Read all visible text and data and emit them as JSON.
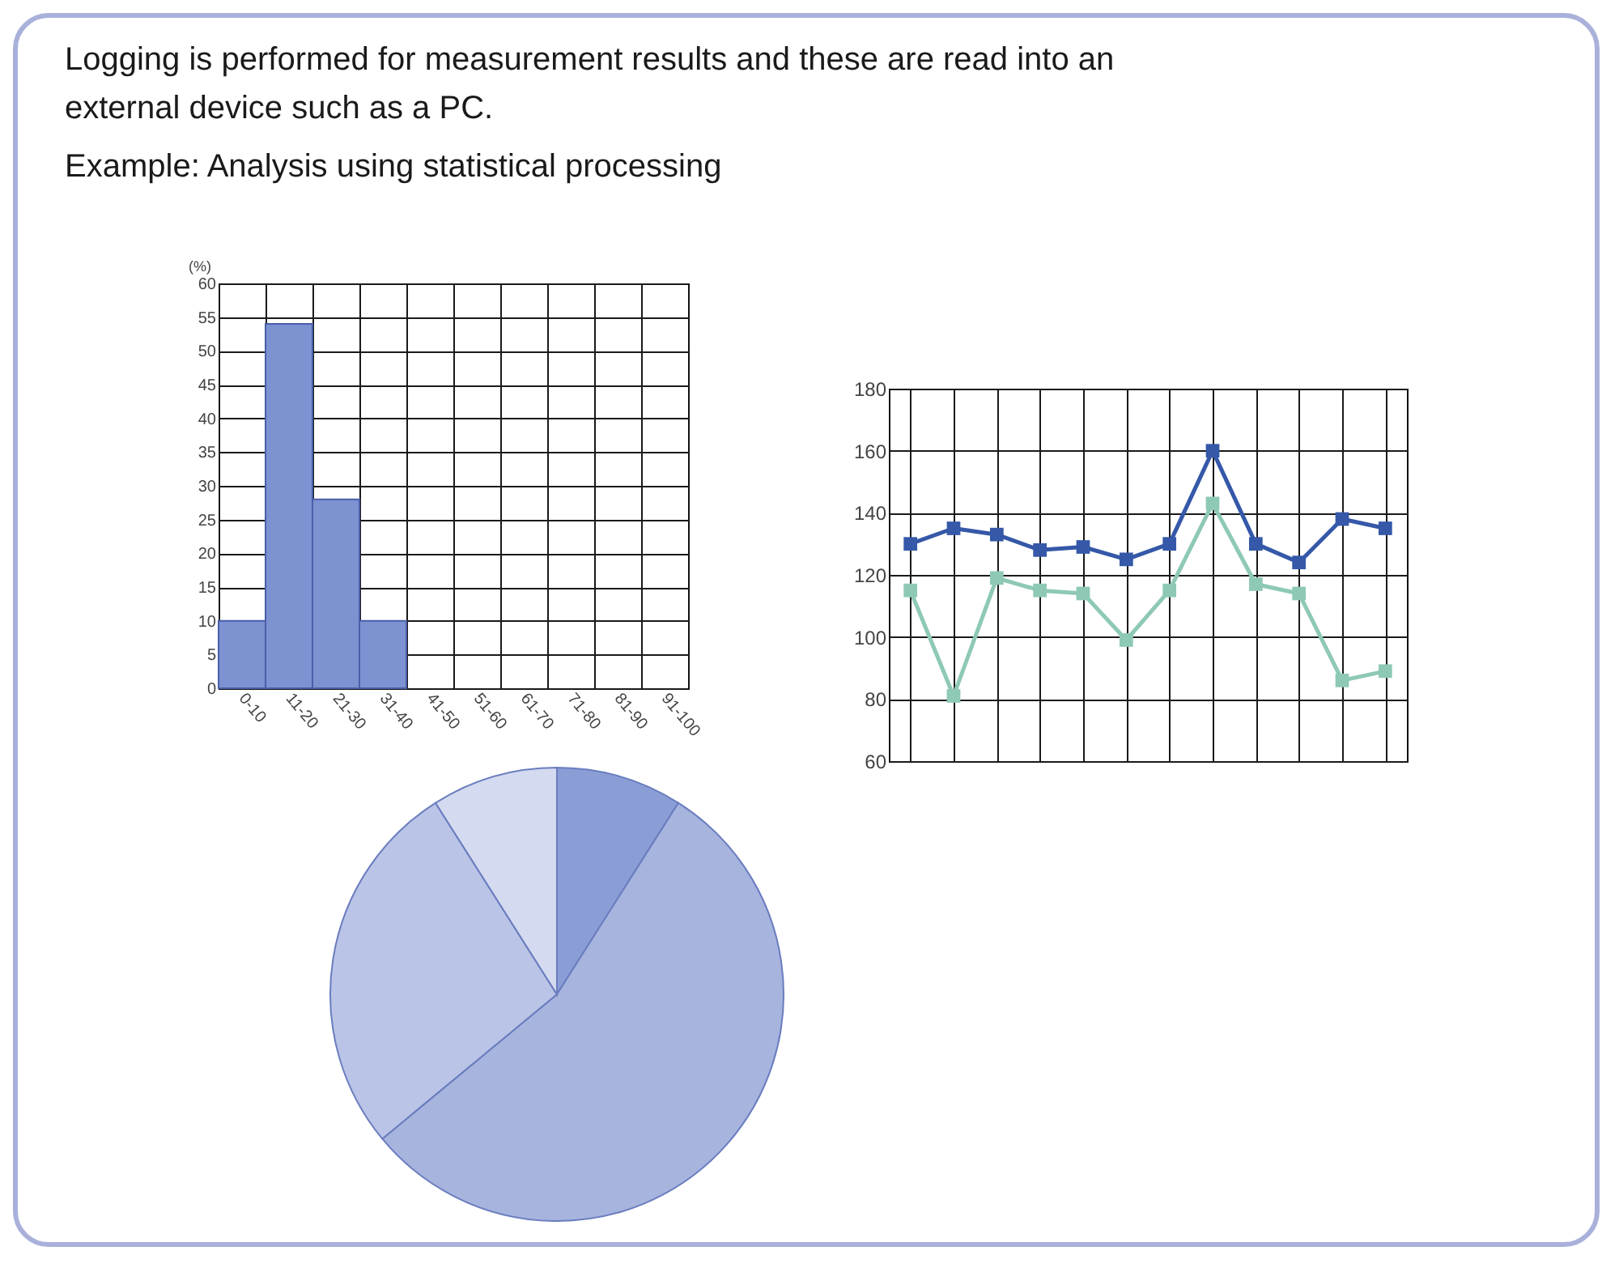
{
  "chart_data": [
    {
      "type": "other",
      "title": "Logging is performed for measurement results and these are read into an external device such as a PC.",
      "subtitle": "Example: Analysis using statistical processing"
    },
    {
      "type": "bar",
      "ylabel": "(%)",
      "categories": [
        "0-10",
        "11-20",
        "21-30",
        "31-40",
        "41-50",
        "51-60",
        "61-70",
        "71-80",
        "81-90",
        "91-100"
      ],
      "values": [
        10,
        54,
        28,
        10,
        null,
        null,
        null,
        null,
        null,
        null
      ],
      "color": "#7d92d1",
      "ylim": [
        0,
        60
      ],
      "yticks": [
        0,
        5,
        10,
        15,
        20,
        25,
        30,
        35,
        40,
        45,
        50,
        55,
        60
      ],
      "grid": true
    },
    {
      "type": "line",
      "categories": [
        null,
        null,
        null,
        null,
        null,
        null,
        null,
        null,
        null,
        null,
        null,
        null
      ],
      "series": [
        {
          "color": "#3558a8",
          "values": [
            130,
            135,
            133,
            128,
            129,
            125,
            130,
            160,
            130,
            124,
            138,
            135
          ]
        },
        {
          "color": "#8ec9b5",
          "values": [
            115,
            81,
            119,
            115,
            114,
            99,
            115,
            143,
            117,
            114,
            86,
            89
          ]
        }
      ],
      "ylim": [
        60,
        180
      ],
      "yticks": [
        60,
        80,
        100,
        120,
        140,
        160,
        180
      ],
      "grid": true,
      "marker": "square",
      "line_style": "solid",
      "tick_labels": "y"
    },
    {
      "type": "pie",
      "categories": [
        null,
        null,
        null,
        null
      ],
      "values": [
        9,
        55,
        27,
        9
      ],
      "colors": [
        "#8a9dd5",
        "#a7b4de",
        "#bac4e6",
        "#d4daf0"
      ]
    }
  ]
}
